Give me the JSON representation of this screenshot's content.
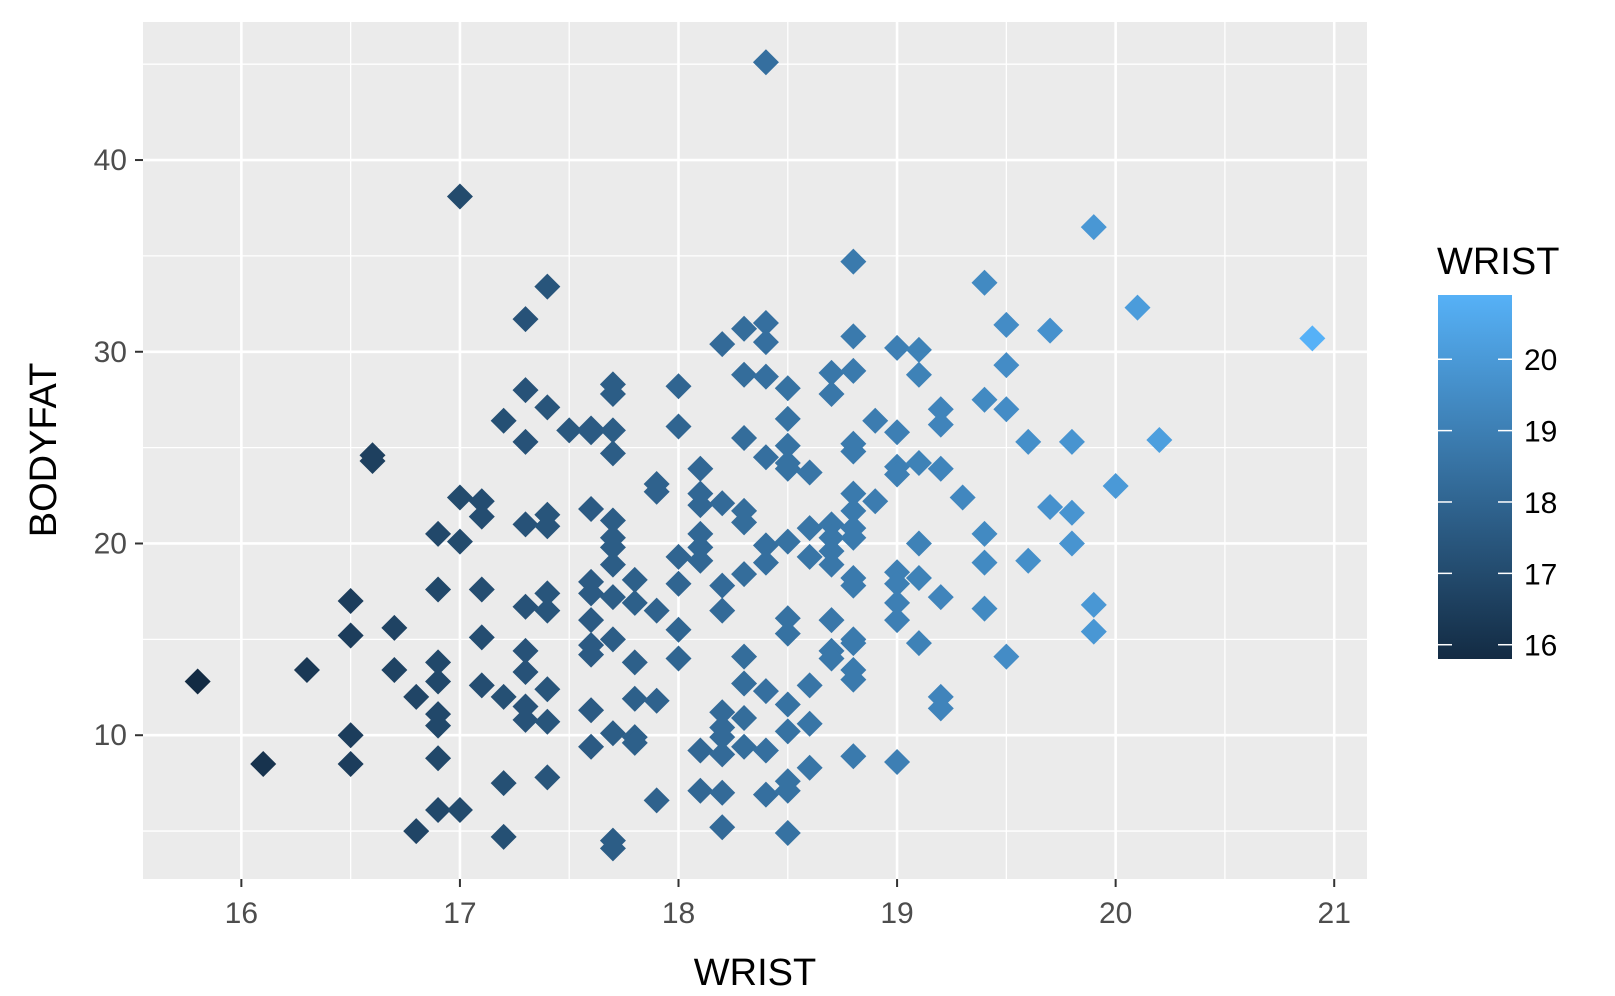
{
  "chart_data": {
    "type": "scatter",
    "xlabel": "WRIST",
    "ylabel": "BODYFAT",
    "xlim": [
      15.55,
      21.15
    ],
    "ylim": [
      2.5,
      47.2
    ],
    "x_ticks": [
      16,
      17,
      18,
      19,
      20,
      21
    ],
    "y_ticks": [
      10,
      20,
      30,
      40
    ],
    "x_tick_labels": [
      "16",
      "17",
      "18",
      "19",
      "20",
      "21"
    ],
    "y_tick_labels": [
      "10",
      "20",
      "30",
      "40"
    ],
    "grid": true,
    "marker": "diamond",
    "color_scale": {
      "variable": "WRIST",
      "title": "WRIST",
      "low_color": "#132B43",
      "high_color": "#56B1F7",
      "range": [
        15.8,
        20.9
      ],
      "breaks": [
        16,
        17,
        18,
        19,
        20
      ],
      "break_labels": [
        "16",
        "17",
        "18",
        "19",
        "20"
      ]
    },
    "legend_position": "right",
    "points": [
      [
        15.8,
        12.8
      ],
      [
        16.1,
        8.5
      ],
      [
        16.3,
        13.4
      ],
      [
        16.5,
        17.0
      ],
      [
        16.5,
        15.2
      ],
      [
        16.5,
        10.0
      ],
      [
        16.5,
        8.5
      ],
      [
        16.6,
        24.6
      ],
      [
        16.6,
        24.3
      ],
      [
        16.7,
        15.6
      ],
      [
        16.7,
        13.4
      ],
      [
        16.8,
        12.0
      ],
      [
        16.8,
        5.0
      ],
      [
        16.9,
        20.5
      ],
      [
        16.9,
        17.6
      ],
      [
        16.9,
        13.8
      ],
      [
        16.9,
        12.8
      ],
      [
        16.9,
        11.1
      ],
      [
        16.9,
        10.5
      ],
      [
        16.9,
        8.8
      ],
      [
        16.9,
        6.1
      ],
      [
        17.0,
        38.1
      ],
      [
        17.0,
        22.4
      ],
      [
        17.0,
        20.1
      ],
      [
        17.0,
        6.1
      ],
      [
        17.1,
        22.2
      ],
      [
        17.1,
        21.4
      ],
      [
        17.1,
        17.6
      ],
      [
        17.1,
        15.1
      ],
      [
        17.1,
        12.6
      ],
      [
        17.2,
        26.4
      ],
      [
        17.2,
        12.0
      ],
      [
        17.2,
        7.5
      ],
      [
        17.2,
        4.7
      ],
      [
        17.3,
        31.7
      ],
      [
        17.3,
        28.0
      ],
      [
        17.3,
        25.3
      ],
      [
        17.3,
        21.0
      ],
      [
        17.3,
        16.7
      ],
      [
        17.3,
        14.4
      ],
      [
        17.3,
        13.3
      ],
      [
        17.3,
        11.5
      ],
      [
        17.3,
        10.8
      ],
      [
        17.4,
        33.4
      ],
      [
        17.4,
        27.1
      ],
      [
        17.4,
        21.5
      ],
      [
        17.4,
        20.9
      ],
      [
        17.4,
        17.4
      ],
      [
        17.4,
        16.5
      ],
      [
        17.4,
        12.4
      ],
      [
        17.4,
        10.7
      ],
      [
        17.4,
        7.8
      ],
      [
        17.5,
        25.9
      ],
      [
        17.6,
        26.0
      ],
      [
        17.6,
        25.8
      ],
      [
        17.6,
        21.8
      ],
      [
        17.6,
        18.0
      ],
      [
        17.6,
        17.4
      ],
      [
        17.6,
        16.0
      ],
      [
        17.6,
        14.7
      ],
      [
        17.6,
        14.2
      ],
      [
        17.6,
        11.3
      ],
      [
        17.6,
        9.4
      ],
      [
        17.7,
        28.3
      ],
      [
        17.7,
        27.8
      ],
      [
        17.7,
        25.9
      ],
      [
        17.7,
        24.7
      ],
      [
        17.7,
        21.2
      ],
      [
        17.7,
        20.3
      ],
      [
        17.7,
        19.8
      ],
      [
        17.7,
        18.9
      ],
      [
        17.7,
        17.2
      ],
      [
        17.7,
        15.0
      ],
      [
        17.7,
        10.1
      ],
      [
        17.7,
        4.5
      ],
      [
        17.7,
        4.1
      ],
      [
        17.8,
        18.1
      ],
      [
        17.8,
        16.9
      ],
      [
        17.8,
        13.8
      ],
      [
        17.8,
        11.9
      ],
      [
        17.8,
        9.9
      ],
      [
        17.8,
        9.6
      ],
      [
        17.9,
        23.1
      ],
      [
        17.9,
        22.7
      ],
      [
        17.9,
        16.5
      ],
      [
        17.9,
        11.8
      ],
      [
        17.9,
        6.6
      ],
      [
        18.0,
        28.2
      ],
      [
        18.0,
        26.1
      ],
      [
        18.0,
        19.3
      ],
      [
        18.0,
        17.9
      ],
      [
        18.0,
        15.5
      ],
      [
        18.0,
        14.0
      ],
      [
        18.1,
        23.9
      ],
      [
        18.1,
        22.6
      ],
      [
        18.1,
        22.0
      ],
      [
        18.1,
        20.5
      ],
      [
        18.1,
        19.8
      ],
      [
        18.1,
        19.1
      ],
      [
        18.1,
        9.2
      ],
      [
        18.1,
        7.1
      ],
      [
        18.2,
        30.4
      ],
      [
        18.2,
        22.1
      ],
      [
        18.2,
        17.8
      ],
      [
        18.2,
        16.5
      ],
      [
        18.2,
        11.2
      ],
      [
        18.2,
        10.4
      ],
      [
        18.2,
        9.9
      ],
      [
        18.2,
        9.0
      ],
      [
        18.2,
        7.0
      ],
      [
        18.2,
        5.2
      ],
      [
        18.3,
        31.2
      ],
      [
        18.3,
        28.8
      ],
      [
        18.3,
        25.5
      ],
      [
        18.3,
        21.7
      ],
      [
        18.3,
        21.1
      ],
      [
        18.3,
        18.4
      ],
      [
        18.3,
        14.1
      ],
      [
        18.3,
        12.7
      ],
      [
        18.3,
        10.9
      ],
      [
        18.3,
        9.4
      ],
      [
        18.4,
        45.1
      ],
      [
        18.4,
        31.5
      ],
      [
        18.4,
        30.5
      ],
      [
        18.4,
        28.7
      ],
      [
        18.4,
        24.5
      ],
      [
        18.4,
        19.9
      ],
      [
        18.4,
        19.0
      ],
      [
        18.4,
        12.3
      ],
      [
        18.4,
        9.2
      ],
      [
        18.4,
        6.9
      ],
      [
        18.5,
        28.1
      ],
      [
        18.5,
        26.5
      ],
      [
        18.5,
        25.1
      ],
      [
        18.5,
        24.2
      ],
      [
        18.5,
        23.9
      ],
      [
        18.5,
        20.1
      ],
      [
        18.5,
        16.1
      ],
      [
        18.5,
        15.3
      ],
      [
        18.5,
        11.6
      ],
      [
        18.5,
        10.2
      ],
      [
        18.5,
        7.6
      ],
      [
        18.5,
        7.1
      ],
      [
        18.5,
        4.9
      ],
      [
        18.6,
        23.7
      ],
      [
        18.6,
        20.8
      ],
      [
        18.6,
        19.3
      ],
      [
        18.6,
        12.6
      ],
      [
        18.6,
        10.6
      ],
      [
        18.6,
        8.3
      ],
      [
        18.7,
        28.9
      ],
      [
        18.7,
        27.8
      ],
      [
        18.7,
        21.0
      ],
      [
        18.7,
        20.3
      ],
      [
        18.7,
        19.6
      ],
      [
        18.7,
        18.9
      ],
      [
        18.7,
        16.0
      ],
      [
        18.7,
        14.4
      ],
      [
        18.7,
        14.0
      ],
      [
        18.8,
        34.7
      ],
      [
        18.8,
        30.8
      ],
      [
        18.8,
        29.0
      ],
      [
        18.8,
        25.2
      ],
      [
        18.8,
        24.8
      ],
      [
        18.8,
        22.6
      ],
      [
        18.8,
        21.7
      ],
      [
        18.8,
        20.8
      ],
      [
        18.8,
        20.3
      ],
      [
        18.8,
        18.2
      ],
      [
        18.8,
        17.8
      ],
      [
        18.8,
        15.0
      ],
      [
        18.8,
        14.8
      ],
      [
        18.8,
        13.4
      ],
      [
        18.8,
        12.9
      ],
      [
        18.8,
        8.9
      ],
      [
        18.9,
        26.4
      ],
      [
        18.9,
        22.2
      ],
      [
        19.0,
        30.2
      ],
      [
        19.0,
        25.8
      ],
      [
        19.0,
        24.0
      ],
      [
        19.0,
        23.6
      ],
      [
        19.0,
        18.5
      ],
      [
        19.0,
        17.9
      ],
      [
        19.0,
        16.9
      ],
      [
        19.0,
        16.0
      ],
      [
        19.0,
        8.6
      ],
      [
        19.1,
        30.1
      ],
      [
        19.1,
        28.8
      ],
      [
        19.1,
        24.2
      ],
      [
        19.1,
        20.0
      ],
      [
        19.1,
        18.2
      ],
      [
        19.1,
        14.8
      ],
      [
        19.2,
        27.0
      ],
      [
        19.2,
        26.2
      ],
      [
        19.2,
        23.9
      ],
      [
        19.2,
        17.2
      ],
      [
        19.2,
        12.0
      ],
      [
        19.2,
        11.4
      ],
      [
        19.3,
        22.4
      ],
      [
        19.4,
        33.6
      ],
      [
        19.4,
        27.5
      ],
      [
        19.4,
        20.5
      ],
      [
        19.4,
        19.0
      ],
      [
        19.4,
        16.6
      ],
      [
        19.5,
        31.4
      ],
      [
        19.5,
        29.3
      ],
      [
        19.5,
        27.0
      ],
      [
        19.5,
        14.1
      ],
      [
        19.6,
        25.3
      ],
      [
        19.6,
        19.1
      ],
      [
        19.7,
        31.1
      ],
      [
        19.7,
        21.9
      ],
      [
        19.8,
        25.3
      ],
      [
        19.8,
        21.6
      ],
      [
        19.8,
        20.0
      ],
      [
        19.9,
        36.5
      ],
      [
        19.9,
        16.8
      ],
      [
        19.9,
        15.4
      ],
      [
        20.0,
        23.0
      ],
      [
        20.1,
        32.3
      ],
      [
        20.2,
        25.4
      ],
      [
        20.9,
        30.7
      ]
    ]
  }
}
